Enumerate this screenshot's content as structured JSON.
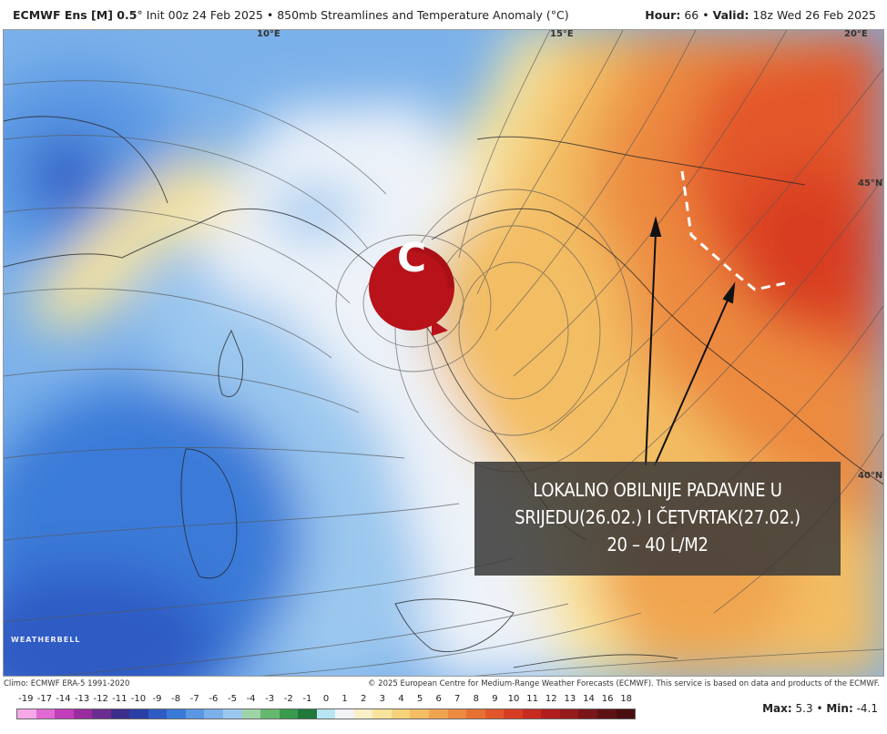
{
  "header": {
    "model": "ECMWF Ens [M] 0.5",
    "degree": "°",
    "init": "Init 00z 24 Feb 2025",
    "sep": "•",
    "product": "850mb Streamlines and Temperature Anomaly (°C)",
    "hour_label": "Hour:",
    "hour_value": "66",
    "valid_label": "Valid:",
    "valid_value": "18z Wed 26 Feb 2025"
  },
  "map": {
    "lon_labels": [
      "10°E",
      "15°E",
      "20°E"
    ],
    "lat_labels": [
      "45°N",
      "40°N"
    ],
    "cyclone_label": "C",
    "annotation": {
      "line1": "LOKALNO OBILNIJE PADAVINE U",
      "line2": "SRIJEDU(26.02.) I ČETVRTAK(27.02.)",
      "line3": "20 – 40 L/M2"
    },
    "watermark": "WEATHERBELL"
  },
  "footer": {
    "climo": "Climo: ECMWF ERA-5 1991-2020",
    "copyright": "© 2025 European Centre for Medium-Range Weather Forecasts (ECMWF). This service is based on data and products of the ECMWF."
  },
  "colorbar": {
    "ticks": [
      "-19",
      "-17",
      "-14",
      "-13",
      "-12",
      "-11",
      "-10",
      "-9",
      "-8",
      "-7",
      "-6",
      "-5",
      "-4",
      "-3",
      "-2",
      "-1",
      "0",
      "1",
      "2",
      "3",
      "4",
      "5",
      "6",
      "7",
      "8",
      "9",
      "10",
      "11",
      "12",
      "13",
      "14",
      "16",
      "18"
    ],
    "colors": [
      "#f7a8e8",
      "#e06ad2",
      "#c23dba",
      "#9a2c9d",
      "#6b2d8f",
      "#3b2e8c",
      "#2a3fa5",
      "#2e5cc4",
      "#3a7ad8",
      "#5a97e3",
      "#7bb1ea",
      "#9bc8ef",
      "#9fd3a8",
      "#66b86f",
      "#3a9a4e",
      "#1f7a3a",
      "#b7e6f2",
      "#f3f4f8",
      "#f9f0c8",
      "#f8e49c",
      "#f6d27a",
      "#f3bd63",
      "#f0a450",
      "#ec8a41",
      "#e87034",
      "#e3562b",
      "#d83d24",
      "#c82a20",
      "#b21e1e",
      "#971a1b",
      "#7a1518",
      "#5e1114",
      "#4a0e10"
    ]
  },
  "stats": {
    "max_label": "Max:",
    "max_value": "5.3",
    "min_label": "Min:",
    "min_value": "-4.1",
    "sep": "•"
  }
}
